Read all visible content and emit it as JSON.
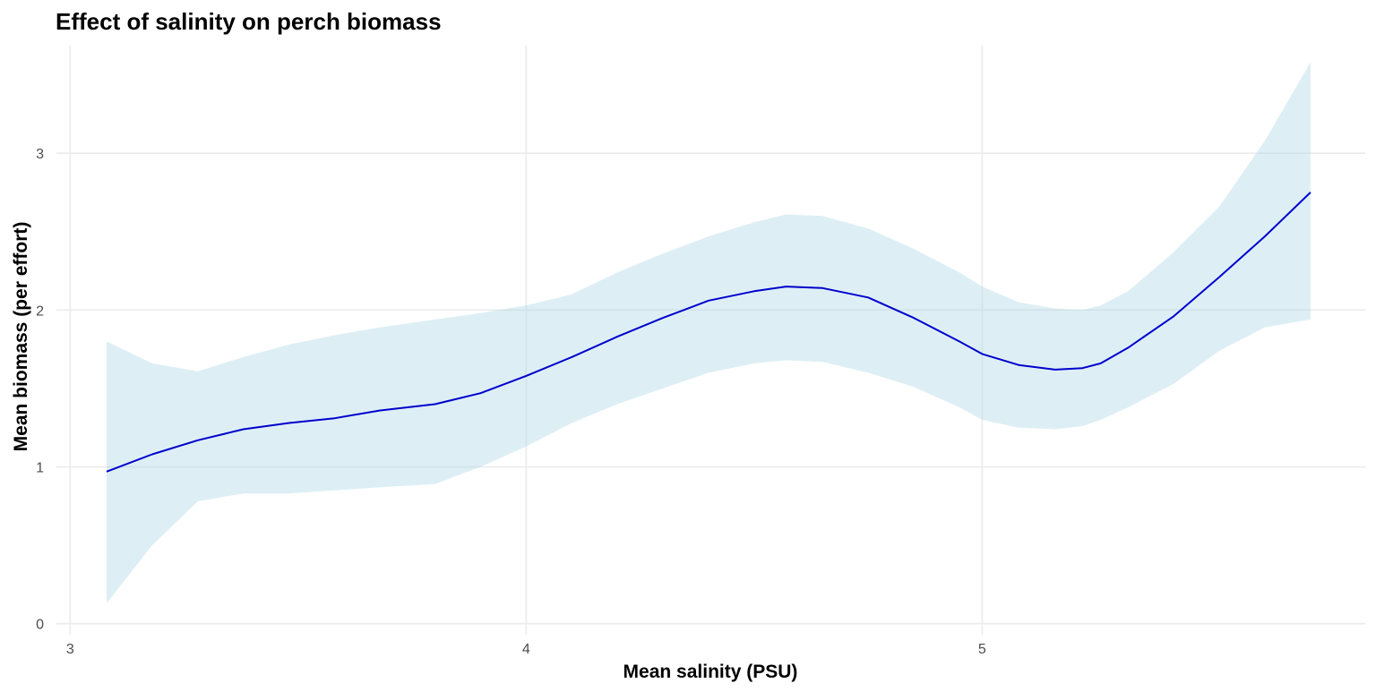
{
  "chart_data": {
    "type": "line",
    "title": "Effect of salinity on perch biomass",
    "xlabel": "Mean salinity (PSU)",
    "ylabel": "Mean biomass (per effort)",
    "xlim": [
      2.97,
      5.84
    ],
    "ylim": [
      -0.07,
      3.72
    ],
    "x_ticks": [
      3,
      4,
      5
    ],
    "y_ticks": [
      0,
      1,
      2,
      3
    ],
    "x_tick_labels": [
      "3",
      "4",
      "5"
    ],
    "y_tick_labels": [
      "0",
      "1",
      "2",
      "3"
    ],
    "grid": true,
    "legend": "none",
    "colors": {
      "line": "#0000cd",
      "ribbon": "#add8e6"
    },
    "series": [
      {
        "x": [
          3.08,
          3.18,
          3.28,
          3.38,
          3.48,
          3.58,
          3.68,
          3.8,
          3.9,
          4.0,
          4.1,
          4.2,
          4.3,
          4.4,
          4.5,
          4.57,
          4.65,
          4.75,
          4.85,
          4.95,
          5.0,
          5.08,
          5.16,
          5.22,
          5.26,
          5.32,
          5.42,
          5.52,
          5.62,
          5.72
        ],
        "y": [
          0.97,
          1.08,
          1.17,
          1.24,
          1.28,
          1.31,
          1.36,
          1.4,
          1.47,
          1.58,
          1.7,
          1.83,
          1.95,
          2.06,
          2.12,
          2.15,
          2.14,
          2.08,
          1.95,
          1.8,
          1.72,
          1.65,
          1.62,
          1.63,
          1.66,
          1.76,
          1.96,
          2.21,
          2.47,
          2.75
        ],
        "lower": [
          0.13,
          0.5,
          0.78,
          0.83,
          0.83,
          0.85,
          0.87,
          0.89,
          1.0,
          1.13,
          1.28,
          1.4,
          1.5,
          1.6,
          1.66,
          1.68,
          1.67,
          1.6,
          1.51,
          1.38,
          1.3,
          1.25,
          1.24,
          1.26,
          1.3,
          1.38,
          1.53,
          1.74,
          1.89,
          1.94
        ],
        "upper": [
          1.8,
          1.66,
          1.61,
          1.7,
          1.78,
          1.84,
          1.89,
          1.94,
          1.98,
          2.03,
          2.1,
          2.24,
          2.36,
          2.47,
          2.56,
          2.61,
          2.6,
          2.52,
          2.39,
          2.24,
          2.15,
          2.05,
          2.01,
          2.0,
          2.03,
          2.12,
          2.37,
          2.66,
          3.08,
          3.58
        ]
      }
    ]
  }
}
